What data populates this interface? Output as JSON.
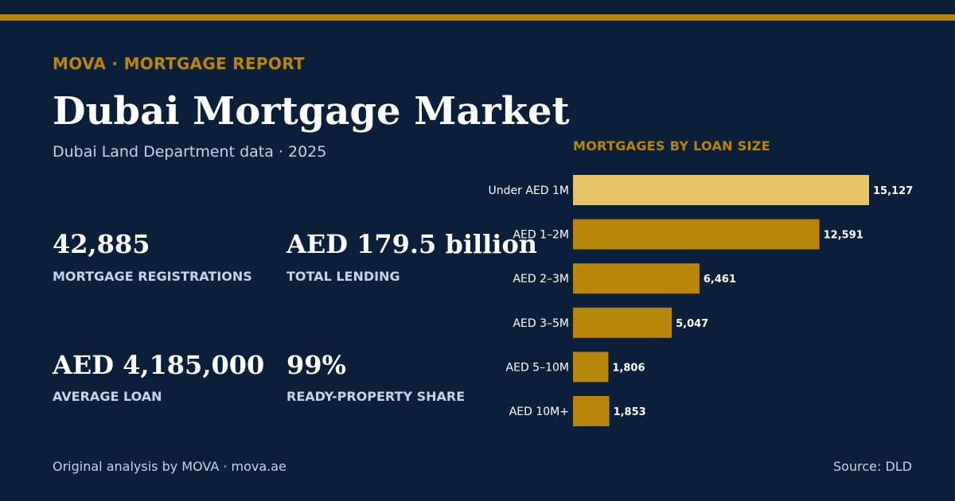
{
  "brand": {
    "kicker": "MOVA · MORTGAGE REPORT",
    "accent_color": "#b8860b",
    "background_color": "#0b1f3a"
  },
  "header": {
    "title": "Dubai Mortgage Market",
    "subtitle": "Dubai Land Department data · 2025"
  },
  "stats": [
    {
      "value": "42,885",
      "label": "MORTGAGE REGISTRATIONS"
    },
    {
      "value": "AED 179.5 billion",
      "label": "TOTAL LENDING"
    },
    {
      "value": "AED 4,185,000",
      "label": "AVERAGE LOAN"
    },
    {
      "value": "99%",
      "label": "READY-PROPERTY SHARE"
    }
  ],
  "chart_data": {
    "type": "bar",
    "orientation": "horizontal",
    "title": "MORTGAGES BY LOAN SIZE",
    "categories": [
      "Under AED 1M",
      "AED 1–2M",
      "AED 2–3M",
      "AED 3–5M",
      "AED 5–10M",
      "AED 10M+"
    ],
    "values": [
      15127,
      12591,
      6461,
      5047,
      1806,
      1853
    ],
    "value_labels": [
      "15,127",
      "12,591",
      "6,461",
      "5,047",
      "1,806",
      "1,853"
    ],
    "bar_color": "#b8860b",
    "highlight_color": "#e8c468",
    "highlight_index": 0,
    "grid": false,
    "legend": "none"
  },
  "footer": {
    "credit": "Original analysis by MOVA · mova.ae",
    "source": "Source: DLD"
  }
}
